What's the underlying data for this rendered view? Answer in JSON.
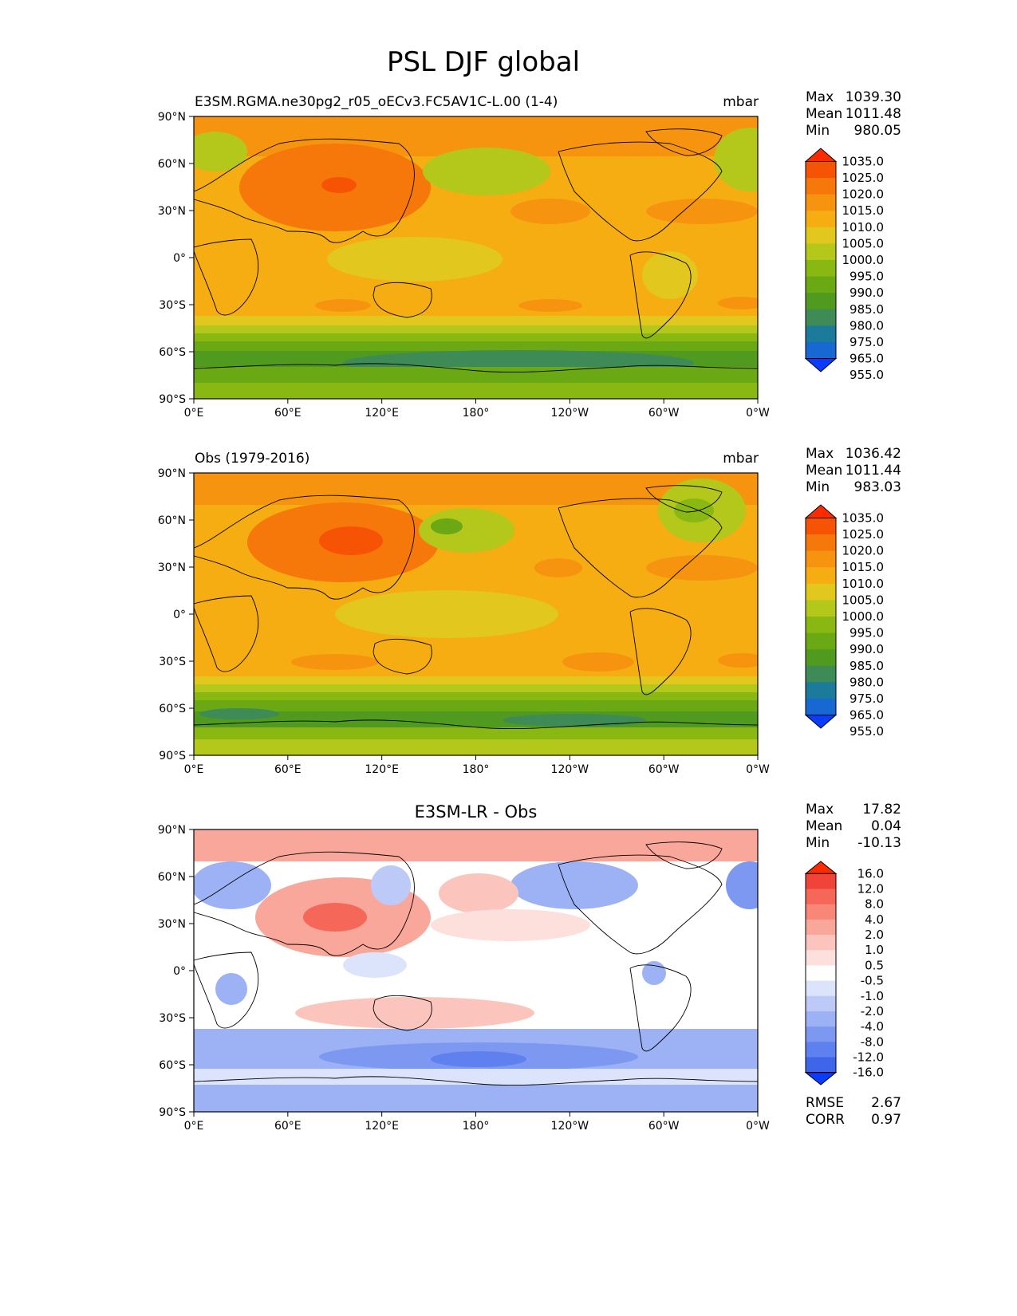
{
  "figure_title": "PSL DJF global",
  "colors": {
    "abs_levels": [
      "#0a3cff",
      "#1768d3",
      "#1c7a9b",
      "#3e8b57",
      "#4f9a1f",
      "#6aa913",
      "#8ab812",
      "#b4c71b",
      "#e2c71e",
      "#f6ad12",
      "#f7940f",
      "#f7780a",
      "#f75305",
      "#ff2a00"
    ],
    "diff_levels": [
      "#0a3cff",
      "#3f65ea",
      "#5f80ef",
      "#7d98f1",
      "#9db2f5",
      "#bdcaf8",
      "#dce4fb",
      "#ffffff",
      "#fde0dc",
      "#fbc5bd",
      "#f9a79b",
      "#f88777",
      "#f56758",
      "#f0443a",
      "#ff2a00"
    ],
    "land_outline": "#000000"
  },
  "chart_data": [
    {
      "type": "heatmap",
      "title": "E3SM.RGMA.ne30pg2_r05_oECv3.FC5AV1C-L.00 (1-4)",
      "units": "mbar",
      "xlabel": "",
      "ylabel": "",
      "x_ticks": [
        "0°E",
        "60°E",
        "120°E",
        "180°",
        "120°W",
        "60°W",
        "0°W"
      ],
      "y_ticks": [
        "90°N",
        "60°N",
        "30°N",
        "0°",
        "30°S",
        "60°S",
        "90°S"
      ],
      "xlim": [
        0,
        360
      ],
      "ylim": [
        -90,
        90
      ],
      "levels": [
        955.0,
        965.0,
        975.0,
        980.0,
        985.0,
        990.0,
        995.0,
        1000.0,
        1005.0,
        1010.0,
        1015.0,
        1020.0,
        1025.0,
        1035.0
      ],
      "colorbar_labels": [
        "1035.0",
        "1025.0",
        "1020.0",
        "1015.0",
        "1010.0",
        "1005.0",
        "1000.0",
        "995.0",
        "990.0",
        "985.0",
        "980.0",
        "975.0",
        "965.0",
        "955.0"
      ],
      "stats": [
        {
          "label": "Max",
          "value": "1039.30"
        },
        {
          "label": "Mean",
          "value": "1011.48"
        },
        {
          "label": "Min",
          "value": "980.05"
        }
      ]
    },
    {
      "type": "heatmap",
      "title": "Obs (1979-2016)",
      "units": "mbar",
      "xlabel": "",
      "ylabel": "",
      "x_ticks": [
        "0°E",
        "60°E",
        "120°E",
        "180°",
        "120°W",
        "60°W",
        "0°W"
      ],
      "y_ticks": [
        "90°N",
        "60°N",
        "30°N",
        "0°",
        "30°S",
        "60°S",
        "90°S"
      ],
      "xlim": [
        0,
        360
      ],
      "ylim": [
        -90,
        90
      ],
      "levels": [
        955.0,
        965.0,
        975.0,
        980.0,
        985.0,
        990.0,
        995.0,
        1000.0,
        1005.0,
        1010.0,
        1015.0,
        1020.0,
        1025.0,
        1035.0
      ],
      "colorbar_labels": [
        "1035.0",
        "1025.0",
        "1020.0",
        "1015.0",
        "1010.0",
        "1005.0",
        "1000.0",
        "995.0",
        "990.0",
        "985.0",
        "980.0",
        "975.0",
        "965.0",
        "955.0"
      ],
      "stats": [
        {
          "label": "Max",
          "value": "1036.42"
        },
        {
          "label": "Mean",
          "value": "1011.44"
        },
        {
          "label": "Min",
          "value": "983.03"
        }
      ]
    },
    {
      "type": "heatmap",
      "title": "E3SM-LR - Obs",
      "units": "",
      "xlabel": "",
      "ylabel": "",
      "x_ticks": [
        "0°E",
        "60°E",
        "120°E",
        "180°",
        "120°W",
        "60°W",
        "0°W"
      ],
      "y_ticks": [
        "90°N",
        "60°N",
        "30°N",
        "0°",
        "30°S",
        "60°S",
        "90°S"
      ],
      "xlim": [
        0,
        360
      ],
      "ylim": [
        -90,
        90
      ],
      "levels": [
        -16.0,
        -12.0,
        -8.0,
        -4.0,
        -2.0,
        -1.0,
        -0.5,
        0.5,
        1.0,
        2.0,
        4.0,
        8.0,
        12.0,
        16.0
      ],
      "colorbar_labels": [
        "16.0",
        "12.0",
        "8.0",
        "4.0",
        "2.0",
        "1.0",
        "0.5",
        "-0.5",
        "-1.0",
        "-2.0",
        "-4.0",
        "-8.0",
        "-12.0",
        "-16.0"
      ],
      "stats": [
        {
          "label": "Max",
          "value": "17.82"
        },
        {
          "label": "Mean",
          "value": "0.04"
        },
        {
          "label": "Min",
          "value": "-10.13"
        }
      ],
      "metrics": [
        {
          "label": "RMSE",
          "value": "2.67"
        },
        {
          "label": "CORR",
          "value": "0.97"
        }
      ]
    }
  ]
}
